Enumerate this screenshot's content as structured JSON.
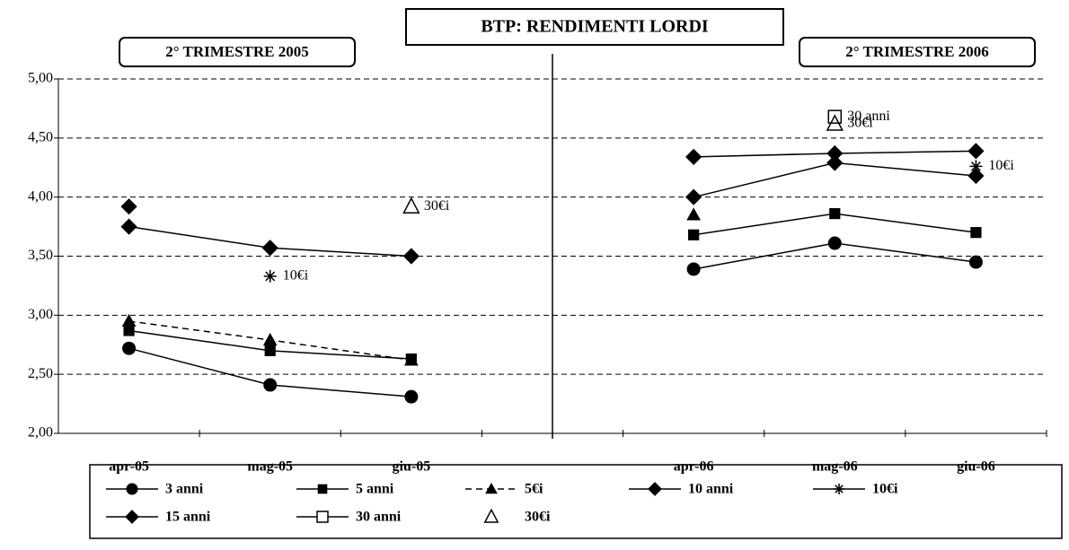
{
  "chart_data": {
    "type": "line",
    "title": "BTP: RENDIMENTI LORDI",
    "panel_titles": [
      "2° TRIMESTRE 2005",
      "2° TRIMESTRE 2006"
    ],
    "categories": [
      "apr-05",
      "mag-05",
      "giu-05",
      null,
      "apr-06",
      "mag-06",
      "giu-06"
    ],
    "ylim": [
      2,
      5
    ],
    "yticks": [
      {
        "value": 2,
        "label": "2,00"
      },
      {
        "value": 2.5,
        "label": "2,50"
      },
      {
        "value": 3,
        "label": "3,00"
      },
      {
        "value": 3.5,
        "label": "3,50"
      },
      {
        "value": 4,
        "label": "4,00"
      },
      {
        "value": 4.5,
        "label": "4,50"
      },
      {
        "value": 5,
        "label": "5,00"
      }
    ],
    "grid": true,
    "series": [
      {
        "name": "3 anni",
        "color": "#000000",
        "marker": "circle",
        "values": [
          2.72,
          2.41,
          2.31,
          null,
          3.39,
          3.61,
          3.45
        ]
      },
      {
        "name": "5 anni",
        "color": "#000000",
        "marker": "square",
        "values": [
          2.87,
          2.7,
          2.63,
          null,
          3.68,
          3.86,
          3.7
        ]
      },
      {
        "name": "5€i",
        "color": "#000000",
        "marker": "triangle",
        "dashed": true,
        "values": [
          2.95,
          2.79,
          2.62,
          null,
          3.85,
          null,
          null
        ]
      },
      {
        "name": "10 anni",
        "color": "#000000",
        "marker": "diamond",
        "values": [
          3.92,
          null,
          null,
          null,
          4.34,
          4.37,
          4.39
        ]
      },
      {
        "name": "10€i",
        "color": "#000000",
        "marker": "asterisk",
        "values": [
          null,
          3.33,
          null,
          null,
          null,
          null,
          4.26
        ]
      },
      {
        "name": "15 anni",
        "color": "#000000",
        "marker": "diamond",
        "values": [
          3.75,
          3.57,
          3.5,
          null,
          4.0,
          4.29,
          4.18
        ]
      },
      {
        "name": "30 anni",
        "color": "#000000",
        "marker": "open-square",
        "values": [
          null,
          null,
          null,
          null,
          null,
          4.68,
          null
        ]
      },
      {
        "name": "30€i",
        "color": "#000000",
        "marker": "open-triangle",
        "noline": true,
        "values": [
          null,
          null,
          3.92,
          null,
          null,
          4.62,
          null
        ]
      }
    ],
    "annotations": [
      {
        "text": "10€i",
        "x": "mag-05",
        "y": 3.33
      },
      {
        "text": "30€i",
        "x": "giu-05",
        "y": 3.92
      },
      {
        "text": "30 anni",
        "x": "mag-06",
        "y": 4.68
      },
      {
        "text": "30€i",
        "x": "mag-06",
        "y": 4.62
      },
      {
        "text": "10€i",
        "x": "giu-06",
        "y": 4.26
      }
    ]
  }
}
